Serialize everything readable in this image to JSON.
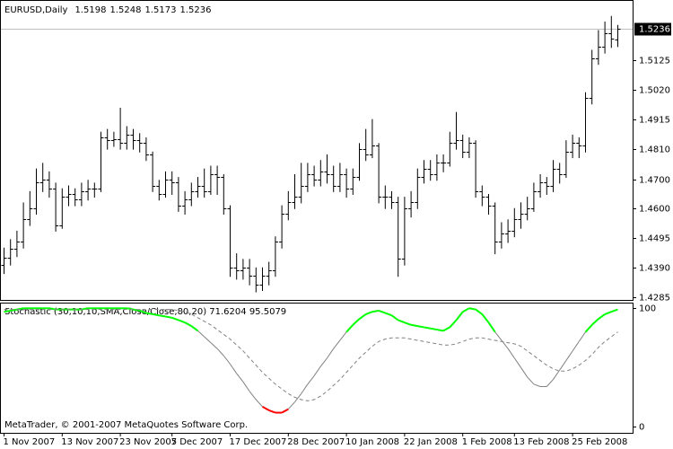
{
  "chart_data": [
    {
      "type": "ohlc",
      "title": "EURUSD,Daily",
      "color": "#000000",
      "price_line_color": "#c0c0c0",
      "categories": [
        "1 Nov 2007",
        null,
        null,
        null,
        null,
        null,
        null,
        null,
        null,
        "13 Nov 2007",
        null,
        null,
        null,
        null,
        null,
        null,
        null,
        null,
        "23 Nov 2007",
        null,
        null,
        null,
        null,
        null,
        null,
        null,
        "5 Dec 2007",
        null,
        null,
        null,
        null,
        null,
        null,
        null,
        null,
        "17 Dec 2007",
        null,
        null,
        null,
        null,
        null,
        null,
        null,
        null,
        "28 Dec 2007",
        null,
        null,
        null,
        null,
        null,
        null,
        null,
        null,
        "10 Jan 2008",
        null,
        null,
        null,
        null,
        null,
        null,
        null,
        null,
        "22 Jan 2008",
        null,
        null,
        null,
        null,
        null,
        null,
        null,
        null,
        "1 Feb 2008",
        null,
        null,
        null,
        null,
        null,
        null,
        null,
        "13 Feb 2008",
        null,
        null,
        null,
        null,
        null,
        null,
        null,
        null,
        "25 Feb 2008",
        null,
        null,
        null,
        null,
        null,
        null,
        null
      ],
      "open": [
        1.44,
        1.4425,
        1.4455,
        1.448,
        1.456,
        1.46,
        1.469,
        1.47,
        1.467,
        1.454,
        1.464,
        1.465,
        1.463,
        1.466,
        1.467,
        1.467,
        1.485,
        1.484,
        1.4845,
        1.483,
        1.486,
        1.484,
        1.483,
        1.479,
        1.468,
        1.465,
        1.47,
        1.469,
        1.461,
        1.463,
        1.466,
        1.468,
        1.466,
        1.472,
        1.471,
        1.46,
        1.439,
        1.438,
        1.439,
        1.436,
        1.433,
        1.436,
        1.438,
        1.448,
        1.458,
        1.462,
        1.464,
        1.468,
        1.472,
        1.47,
        1.473,
        1.472,
        1.468,
        1.472,
        1.467,
        1.471,
        1.481,
        1.479,
        1.482,
        1.464,
        1.464,
        1.462,
        1.442,
        1.46,
        1.462,
        1.471,
        1.474,
        1.472,
        1.476,
        1.476,
        1.483,
        1.484,
        1.48,
        1.483,
        1.466,
        1.464,
        1.461,
        1.448,
        1.451,
        1.452,
        1.456,
        1.458,
        1.46,
        1.466,
        1.469,
        1.468,
        1.474,
        1.472,
        1.48,
        1.483,
        1.482,
        1.499,
        1.513,
        1.517,
        1.522,
        1.5198
      ],
      "high": [
        1.446,
        1.449,
        1.452,
        1.462,
        1.466,
        1.474,
        1.476,
        1.473,
        1.469,
        1.467,
        1.468,
        1.467,
        1.469,
        1.47,
        1.469,
        1.487,
        1.488,
        1.487,
        1.4955,
        1.489,
        1.488,
        1.4865,
        1.485,
        1.48,
        1.47,
        1.473,
        1.473,
        1.471,
        1.466,
        1.469,
        1.471,
        1.474,
        1.475,
        1.475,
        1.472,
        1.461,
        1.444,
        1.442,
        1.442,
        1.439,
        1.439,
        1.441,
        1.45,
        1.461,
        1.466,
        1.472,
        1.476,
        1.476,
        1.475,
        1.477,
        1.479,
        1.475,
        1.476,
        1.474,
        1.474,
        1.483,
        1.488,
        1.4915,
        1.483,
        1.468,
        1.466,
        1.464,
        1.464,
        1.466,
        1.474,
        1.477,
        1.477,
        1.479,
        1.479,
        1.487,
        1.494,
        1.486,
        1.485,
        1.484,
        1.468,
        1.465,
        1.462,
        1.455,
        1.456,
        1.46,
        1.462,
        1.464,
        1.469,
        1.472,
        1.471,
        1.477,
        1.476,
        1.484,
        1.486,
        1.485,
        1.501,
        1.516,
        1.523,
        1.526,
        1.528,
        1.5248
      ],
      "low": [
        1.437,
        1.44,
        1.443,
        1.446,
        1.454,
        1.458,
        1.466,
        1.464,
        1.452,
        1.453,
        1.461,
        1.461,
        1.461,
        1.463,
        1.464,
        1.466,
        1.481,
        1.482,
        1.481,
        1.481,
        1.481,
        1.48,
        1.477,
        1.466,
        1.463,
        1.464,
        1.465,
        1.459,
        1.458,
        1.461,
        1.464,
        1.464,
        1.465,
        1.465,
        1.458,
        1.436,
        1.435,
        1.435,
        1.433,
        1.4305,
        1.431,
        1.433,
        1.436,
        1.446,
        1.456,
        1.46,
        1.462,
        1.466,
        1.468,
        1.468,
        1.469,
        1.466,
        1.466,
        1.464,
        1.465,
        1.47,
        1.477,
        1.478,
        1.462,
        1.46,
        1.46,
        1.436,
        1.44,
        1.457,
        1.46,
        1.469,
        1.47,
        1.47,
        1.473,
        1.475,
        1.481,
        1.478,
        1.478,
        1.464,
        1.461,
        1.458,
        1.444,
        1.446,
        1.448,
        1.45,
        1.453,
        1.456,
        1.459,
        1.464,
        1.465,
        1.466,
        1.469,
        1.471,
        1.478,
        1.478,
        1.48,
        1.497,
        1.511,
        1.515,
        1.517,
        1.5173
      ],
      "close": [
        1.4425,
        1.4455,
        1.448,
        1.456,
        1.46,
        1.469,
        1.47,
        1.467,
        1.454,
        1.464,
        1.465,
        1.463,
        1.466,
        1.467,
        1.467,
        1.485,
        1.484,
        1.4845,
        1.483,
        1.486,
        1.484,
        1.483,
        1.479,
        1.468,
        1.465,
        1.47,
        1.469,
        1.461,
        1.463,
        1.466,
        1.468,
        1.466,
        1.472,
        1.471,
        1.46,
        1.439,
        1.438,
        1.439,
        1.436,
        1.433,
        1.436,
        1.438,
        1.448,
        1.458,
        1.462,
        1.464,
        1.468,
        1.472,
        1.47,
        1.473,
        1.472,
        1.468,
        1.472,
        1.467,
        1.471,
        1.481,
        1.479,
        1.482,
        1.464,
        1.464,
        1.462,
        1.442,
        1.46,
        1.462,
        1.471,
        1.474,
        1.472,
        1.476,
        1.476,
        1.483,
        1.484,
        1.48,
        1.483,
        1.466,
        1.464,
        1.461,
        1.448,
        1.451,
        1.452,
        1.456,
        1.458,
        1.46,
        1.466,
        1.469,
        1.468,
        1.474,
        1.472,
        1.48,
        1.483,
        1.482,
        1.499,
        1.513,
        1.517,
        1.522,
        1.52,
        1.5236
      ],
      "ylim": [
        1.4275,
        1.533
      ],
      "yticks": [
        1.5125,
        {
          "value": 1.502,
          "label": "1.5020"
        },
        1.4915,
        {
          "value": 1.481,
          "label": "1.4810"
        },
        {
          "value": 1.47,
          "label": "1.4700"
        },
        {
          "value": 1.46,
          "label": "1.4600"
        },
        1.4495,
        {
          "value": 1.439,
          "label": "1.4390"
        },
        1.4285
      ]
    },
    {
      "type": "line",
      "title": "Stochastic (30,10,10,SMA,Close/Close,80,20) 71.6204 95.5079",
      "annotation": "MetaTrader, © 2001-2007 MetaQuotes Software Corp.",
      "upper_level": 80,
      "lower_level": 20,
      "upper_color": "#00ff00",
      "lower_color": "#ff0000",
      "series": [
        {
          "color": "#808080",
          "dash": false,
          "values": [
            97,
            98,
            99,
            100,
            100,
            100,
            100,
            100,
            99,
            99,
            99,
            99,
            99,
            100,
            100,
            100,
            100,
            100,
            100,
            100,
            99,
            98,
            96,
            95,
            94,
            93,
            92,
            90,
            88,
            85,
            81,
            76,
            71,
            66,
            60,
            53,
            45,
            38,
            30,
            23,
            17,
            14,
            12,
            12,
            15,
            21,
            28,
            36,
            43,
            51,
            58,
            66,
            73,
            80,
            86,
            91,
            95,
            97,
            98,
            96,
            94,
            90,
            88,
            86,
            85,
            84,
            83,
            82,
            81,
            84,
            90,
            97,
            100,
            99,
            95,
            88,
            80,
            73,
            66,
            58,
            50,
            42,
            36,
            34,
            34,
            40,
            48,
            56,
            64,
            72,
            80,
            86,
            91,
            95,
            97,
            99
          ]
        },
        {
          "color": "#808080",
          "dash": true,
          "values": [
            99,
            99,
            99,
            99,
            99,
            99,
            99,
            99,
            99,
            99,
            99,
            99,
            99,
            99,
            99,
            99,
            99,
            99,
            99,
            99,
            99,
            99,
            99,
            99,
            99,
            99,
            99,
            98,
            97,
            95,
            92,
            89,
            86,
            82,
            78,
            74,
            69,
            64,
            58,
            52,
            46,
            41,
            36,
            32,
            28,
            25,
            23,
            22,
            23,
            26,
            30,
            35,
            40,
            46,
            52,
            58,
            63,
            68,
            72,
            74,
            75,
            75,
            75,
            74,
            73,
            72,
            71,
            70,
            69,
            69,
            70,
            72,
            74,
            75,
            75,
            74,
            73,
            72,
            71,
            70,
            68,
            64,
            60,
            56,
            52,
            49,
            47,
            47,
            49,
            52,
            56,
            61,
            67,
            72,
            76,
            80
          ]
        }
      ],
      "ylim": [
        -5,
        104
      ],
      "yticks": [
        0,
        100
      ]
    }
  ]
}
